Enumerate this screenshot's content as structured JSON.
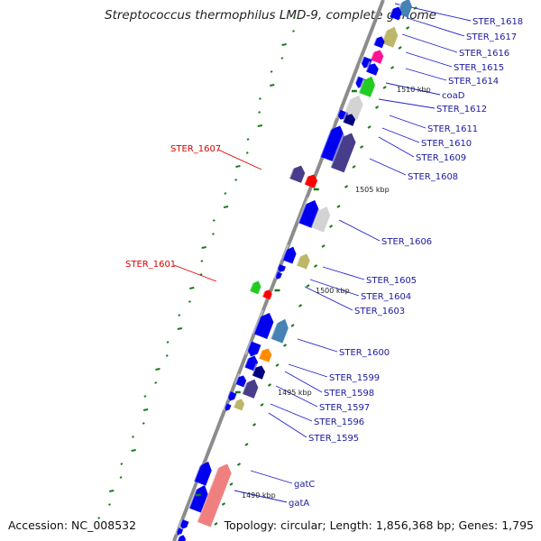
{
  "title": "Streptococcus thermophilus LMD-9, complete genome",
  "footer": {
    "accession": "Accession: NC_008532",
    "topology": "Topology: circular; Length: 1,856,368 bp; Genes: 1,795"
  },
  "colors": {
    "backbone": "#8c8c8c",
    "gene_primary": "#0000ee",
    "highlight_label": "#dd0000",
    "gene_label": "#1a1aa0",
    "tick": "#1a7a1a",
    "khaki": "#bdb76b",
    "slate": "#483d8b",
    "steel": "#4682b4",
    "pink": "#ff1493",
    "lightgray": "#d3d3d3",
    "lime": "#22cc22",
    "orange": "#ff8c00",
    "navy": "#000080",
    "salmon": "#f08080",
    "red": "#ff0000"
  },
  "kbp_markers": [
    "1510 kbp",
    "1505 kbp",
    "1500 kbp",
    "1495 kbp",
    "1490 kbp"
  ],
  "gene_labels": [
    "STER_1618",
    "STER_1617",
    "STER_1616",
    "STER_1615",
    "STER_1614",
    "coaD",
    "STER_1612",
    "STER_1611",
    "STER_1610",
    "STER_1609",
    "STER_1608",
    "STER_1606",
    "STER_1605",
    "STER_1604",
    "STER_1603",
    "STER_1600",
    "STER_1599",
    "STER_1598",
    "STER_1597",
    "STER_1596",
    "STER_1595",
    "gatC",
    "gatA"
  ],
  "highlight_labels": [
    "STER_1607",
    "STER_1601"
  ]
}
